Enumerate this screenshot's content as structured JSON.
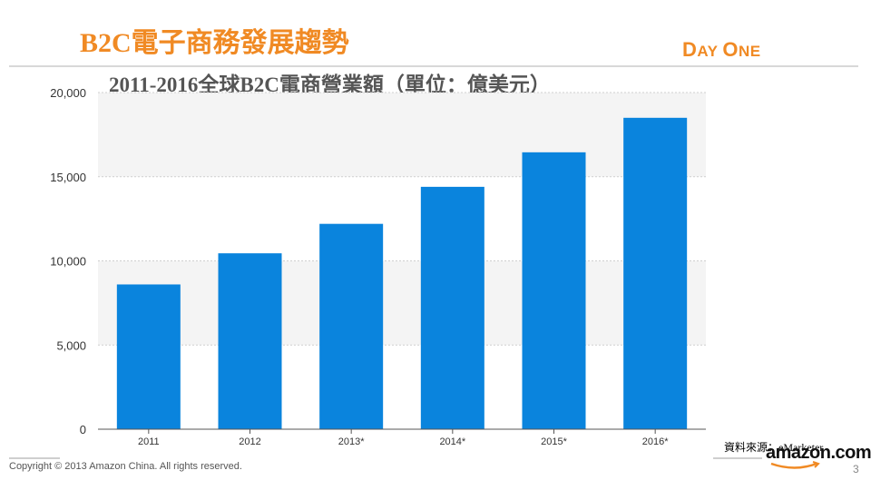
{
  "slide": {
    "title": "B2C電子商務發展趨勢",
    "logo_day_D": "D",
    "logo_day_rest": "AY",
    "logo_one_O": "O",
    "logo_one_rest": "NE",
    "source": "資料來源：eMarketer",
    "copyright": "Copyright © 2013 Amazon China. All rights reserved.",
    "amazon_logo": "amazon.com",
    "page_number": "3"
  },
  "colors": {
    "accent": "#f08a24",
    "bar": "#0a84dd",
    "band": "#f4f4f4"
  },
  "chart_data": {
    "type": "bar",
    "title": "2011-2016全球B2C電商營業額（單位：億美元）",
    "categories": [
      "2011",
      "2012",
      "2013*",
      "2014*",
      "2015*",
      "2016*"
    ],
    "values": [
      8600,
      10450,
      12200,
      14400,
      16450,
      18500
    ],
    "ylim": [
      0,
      20000
    ],
    "yticks": [
      0,
      5000,
      10000,
      15000,
      20000
    ],
    "ytick_labels": [
      "0",
      "5,000",
      "10,000",
      "15,000",
      "20,000"
    ],
    "grid": true,
    "legend": "none"
  }
}
